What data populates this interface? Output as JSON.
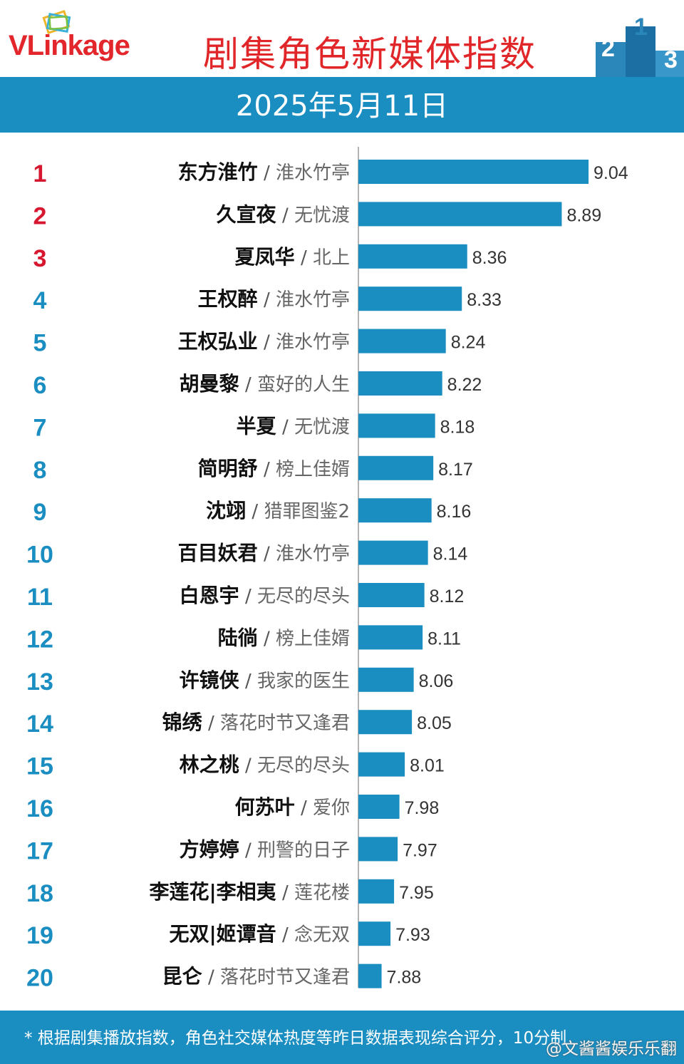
{
  "header": {
    "logo_text": "VLinkage",
    "title": "剧集角色新媒体指数",
    "podium_numbers": [
      "2",
      "1",
      "3"
    ]
  },
  "date": "2025年5月11日",
  "colors": {
    "bar": "#1a8dc1",
    "rank_top": "#d7172f",
    "rank_other": "#1a8dc1",
    "title_red": "#e1262a"
  },
  "chart_data": {
    "type": "bar",
    "orientation": "horizontal",
    "title": "剧集角色新媒体指数",
    "subtitle": "2025年5月11日",
    "xlim": [
      7.75,
      9.2
    ],
    "ranks": [
      "1",
      "2",
      "3",
      "4",
      "5",
      "6",
      "7",
      "8",
      "9",
      "10",
      "11",
      "12",
      "13",
      "14",
      "15",
      "16",
      "17",
      "18",
      "19",
      "20"
    ],
    "characters": [
      "东方淮竹",
      "久宣夜",
      "夏凤华",
      "王权醉",
      "王权弘业",
      "胡曼黎",
      "半夏",
      "简明舒",
      "沈翊",
      "百目妖君",
      "白恩宇",
      "陆徜",
      "许镜侠",
      "锦绣",
      "林之桃",
      "何苏叶",
      "方婷婷",
      "李莲花|李相夷",
      "无双|姬谭音",
      "昆仑"
    ],
    "dramas": [
      "淮水竹亭",
      "无忧渡",
      "北上",
      "淮水竹亭",
      "淮水竹亭",
      "蛮好的人生",
      "无忧渡",
      "榜上佳婿",
      "猎罪图鉴2",
      "淮水竹亭",
      "无尽的尽头",
      "榜上佳婿",
      "我家的医生",
      "落花时节又逢君",
      "无尽的尽头",
      "爱你",
      "刑警的日子",
      "莲花楼",
      "念无双",
      "落花时节又逢君"
    ],
    "values": [
      9.04,
      8.89,
      8.36,
      8.33,
      8.24,
      8.22,
      8.18,
      8.17,
      8.16,
      8.14,
      8.12,
      8.11,
      8.06,
      8.05,
      8.01,
      7.98,
      7.97,
      7.95,
      7.93,
      7.88
    ]
  },
  "footer": {
    "note": "* 根据剧集播放指数，角色社交媒体热度等昨日数据表现综合评分，10分制",
    "watermark": "@文酱酱娱乐乐翻"
  }
}
